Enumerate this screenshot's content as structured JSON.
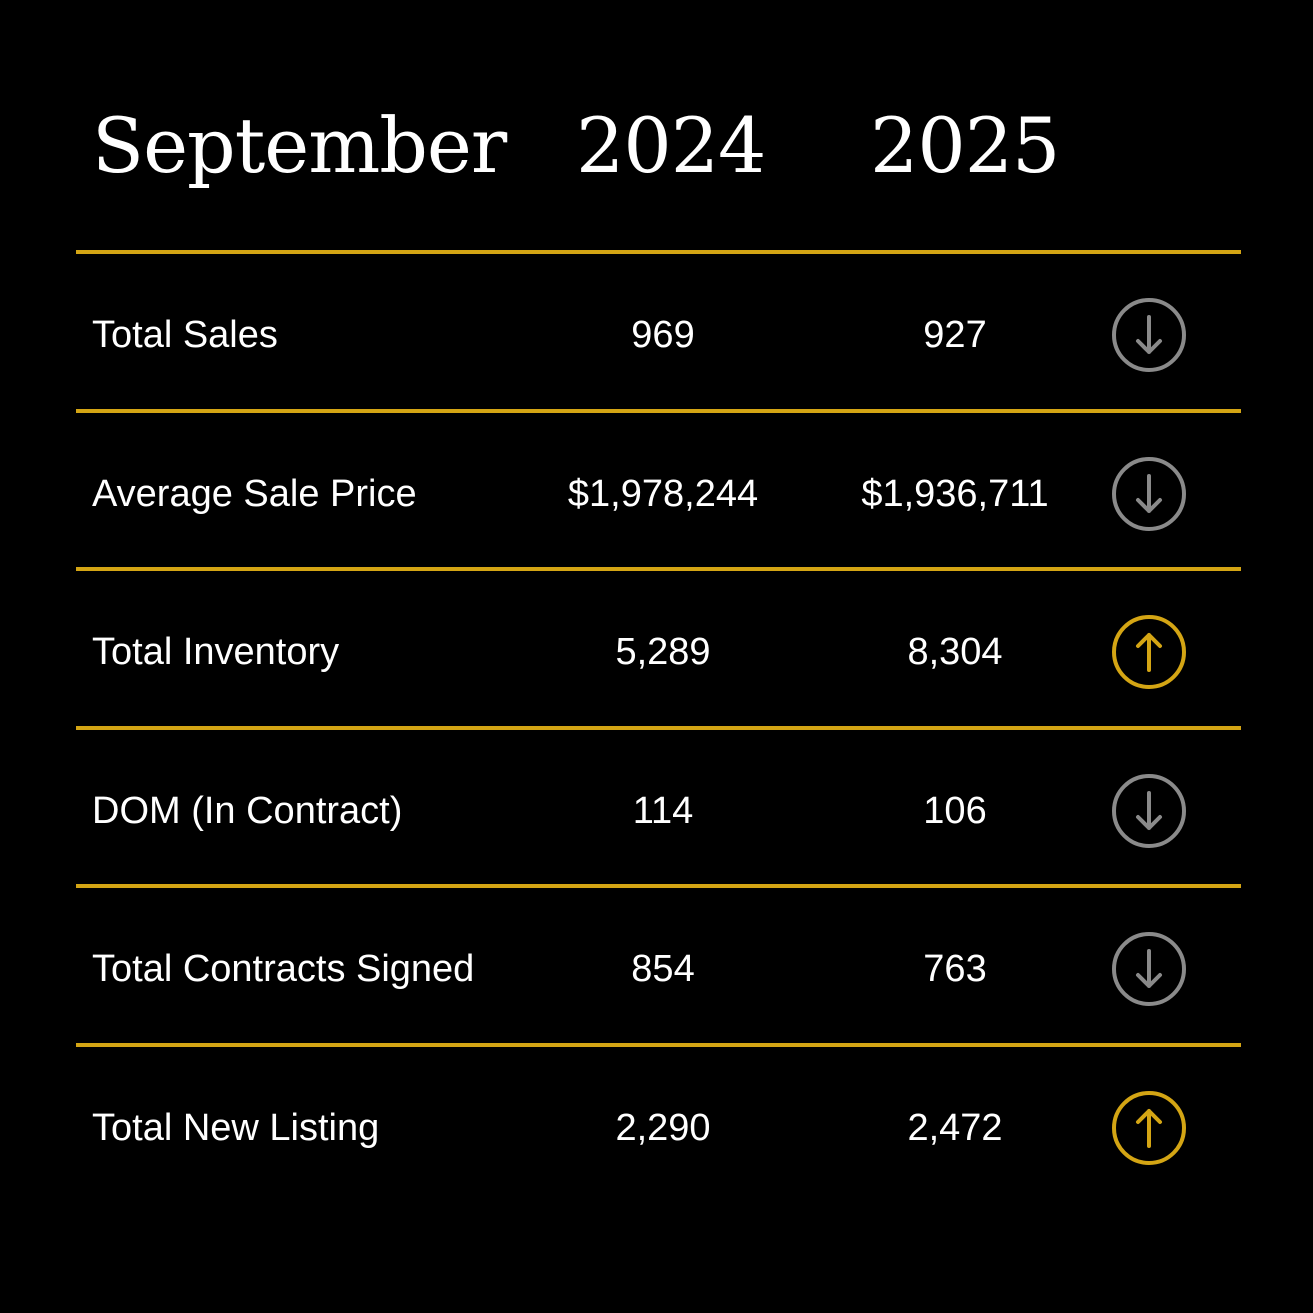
{
  "header": {
    "month": "September",
    "year1": "2024",
    "year2": "2025"
  },
  "colors": {
    "background": "#000000",
    "divider": "#d4a514",
    "up": "#d4a514",
    "down": "#8a8a8a",
    "text": "#ffffff"
  },
  "rows": [
    {
      "label": "Total Sales",
      "v2024": "969",
      "v2025": "927",
      "trend": "down",
      "icon": "arrow-down-circle-icon"
    },
    {
      "label": "Average Sale Price",
      "v2024": "$1,978,244",
      "v2025": "$1,936,711",
      "trend": "down",
      "icon": "arrow-down-circle-icon"
    },
    {
      "label": "Total Inventory",
      "v2024": "5,289",
      "v2025": "8,304",
      "trend": "up",
      "icon": "arrow-up-circle-icon"
    },
    {
      "label": "DOM (In Contract)",
      "v2024": "114",
      "v2025": "106",
      "trend": "down",
      "icon": "arrow-down-circle-icon"
    },
    {
      "label": "Total Contracts Signed",
      "v2024": "854",
      "v2025": "763",
      "trend": "down",
      "icon": "arrow-down-circle-icon"
    },
    {
      "label": "Total New Listing",
      "v2024": "2,290",
      "v2025": "2,472",
      "trend": "up",
      "icon": "arrow-up-circle-icon"
    }
  ]
}
